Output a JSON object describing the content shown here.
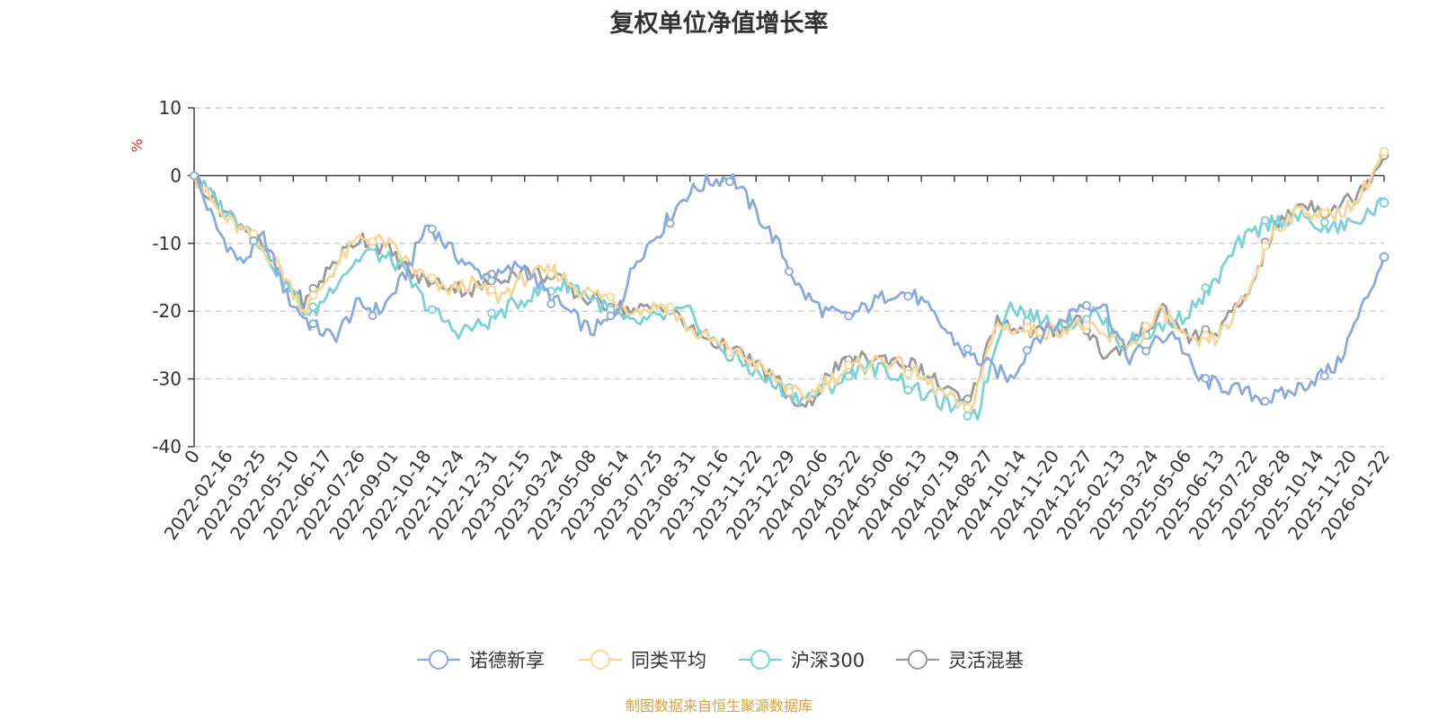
{
  "chart_data": {
    "type": "line",
    "title": "复权单位净值增长率",
    "ylabel": "%",
    "ylim": [
      -40,
      10
    ],
    "yticks": [
      10,
      0,
      -10,
      -20,
      -30,
      -40
    ],
    "grid": true,
    "legend_position": "bottom",
    "source": "制图数据来自恒生聚源数据库",
    "x_tick_labels": [
      "0",
      "2022-02-16",
      "2022-03-25",
      "2022-05-10",
      "2022-06-17",
      "2022-07-26",
      "2022-09-01",
      "2022-10-18",
      "2022-11-24",
      "2022-12-31",
      "2023-02-15",
      "2023-03-24",
      "2023-05-08",
      "2023-06-14",
      "2023-07-25",
      "2023-08-31",
      "2023-10-16",
      "2023-11-22",
      "2023-12-29",
      "2024-02-06",
      "2024-03-22",
      "2024-05-06",
      "2024-06-13",
      "2024-07-19",
      "2024-08-27",
      "2024-10-14",
      "2024-11-20",
      "2024-12-27",
      "2025-02-13",
      "2025-03-24",
      "2025-05-06",
      "2025-06-13",
      "2025-07-22",
      "2025-08-28",
      "2025-10-14",
      "2025-11-20",
      "2026-01-22"
    ],
    "series": [
      {
        "name": "诺德新享",
        "color": "#8baad8",
        "values": [
          0,
          -8,
          -13,
          -9,
          -18,
          -22,
          -24,
          -19,
          -20,
          -15,
          -7,
          -11,
          -14,
          -15,
          -13,
          -17,
          -20,
          -23,
          -21,
          -12,
          -8,
          -3,
          -1,
          0,
          -5,
          -10,
          -17,
          -20,
          -21,
          -19,
          -17,
          -18,
          -22,
          -26,
          -28,
          -30,
          -24,
          -22,
          -19,
          -19,
          -27,
          -25,
          -23,
          -30,
          -31,
          -32,
          -33,
          -32,
          -30,
          -28,
          -20,
          -12
        ]
      },
      {
        "name": "同类平均",
        "color": "#f6d79b",
        "values": [
          0,
          -6,
          -9,
          -13,
          -20,
          -14,
          -9,
          -10,
          -14,
          -17,
          -16,
          -18,
          -15,
          -14,
          -17,
          -18,
          -20,
          -19,
          -23,
          -25,
          -27,
          -30,
          -33,
          -30,
          -28,
          -27,
          -29,
          -32,
          -35,
          -22,
          -23,
          -23,
          -22,
          -24,
          -25,
          -20,
          -25,
          -24,
          -18,
          -8,
          -5,
          -6,
          -4,
          3.5
        ]
      },
      {
        "name": "沪深300",
        "color": "#7dd0d4",
        "values": [
          0,
          -5,
          -8,
          -15,
          -21,
          -15,
          -11,
          -13,
          -19,
          -23,
          -22,
          -19,
          -17,
          -16,
          -19,
          -22,
          -21,
          -20,
          -25,
          -28,
          -31,
          -33,
          -31,
          -28,
          -29,
          -32,
          -34,
          -35,
          -19,
          -21,
          -22,
          -20,
          -25,
          -23,
          -21,
          -17,
          -10,
          -7,
          -6,
          -8,
          -7,
          -4
        ]
      },
      {
        "name": "灵活混基",
        "color": "#999999",
        "values": [
          0,
          -5,
          -8,
          -14,
          -19,
          -13,
          -9,
          -11,
          -15,
          -16,
          -17,
          -15,
          -14,
          -15,
          -18,
          -19,
          -20,
          -19,
          -23,
          -25,
          -27,
          -30,
          -35,
          -29,
          -27,
          -27,
          -28,
          -31,
          -34,
          -21,
          -23,
          -23,
          -21,
          -27,
          -24,
          -20,
          -24,
          -23,
          -18,
          -8,
          -4,
          -5,
          -3,
          3
        ]
      }
    ]
  }
}
